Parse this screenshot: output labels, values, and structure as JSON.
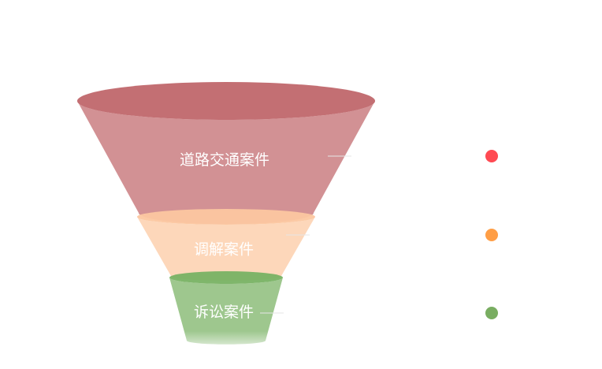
{
  "chart_data": {
    "type": "funnel",
    "title": "",
    "categories": [
      "道路交通案件",
      "调解案件",
      "诉讼案件"
    ],
    "series": [
      {
        "values": [
          100,
          60,
          30
        ]
      }
    ],
    "colors": [
      "#c0676b",
      "#fcc7a0",
      "#78b263"
    ],
    "legend": {
      "position": "right",
      "markers": [
        "#ff4a52",
        "#ff9e46",
        "#79ad61"
      ],
      "labels": [
        "",
        "",
        ""
      ]
    },
    "grid": false
  }
}
